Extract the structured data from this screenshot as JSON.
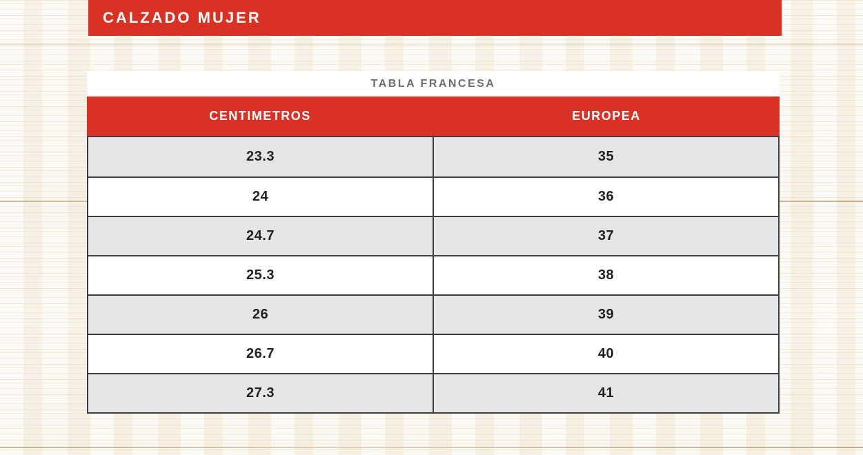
{
  "page": {
    "banner": {
      "title": "CALZADO MUJER"
    },
    "table": {
      "title": "TABLA FRANCESA",
      "columns": [
        "CENTIMETROS",
        "EUROPEA"
      ],
      "rows": [
        [
          "23.3",
          "35"
        ],
        [
          "24",
          "36"
        ],
        [
          "24.7",
          "37"
        ],
        [
          "25.3",
          "38"
        ],
        [
          "26",
          "39"
        ],
        [
          "26.7",
          "40"
        ],
        [
          "27.3",
          "41"
        ]
      ]
    },
    "colors": {
      "accent_red": "#d93123",
      "row_alt_gray": "#e3e5e6",
      "row_border_dark": "#3d3d3f",
      "table_title_gray": "#6d6e71",
      "cell_text": "#232020"
    }
  },
  "chart_data": {
    "type": "table",
    "title": "TABLA FRANCESA",
    "columns": [
      "CENTIMETROS",
      "EUROPEA"
    ],
    "rows": [
      [
        23.3,
        35
      ],
      [
        24,
        36
      ],
      [
        24.7,
        37
      ],
      [
        25.3,
        38
      ],
      [
        26,
        39
      ],
      [
        26.7,
        40
      ],
      [
        27.3,
        41
      ]
    ],
    "layout_hints": {
      "header_bg": "#d93123",
      "alternating_rows": true,
      "first_data_row_shaded": true
    }
  }
}
